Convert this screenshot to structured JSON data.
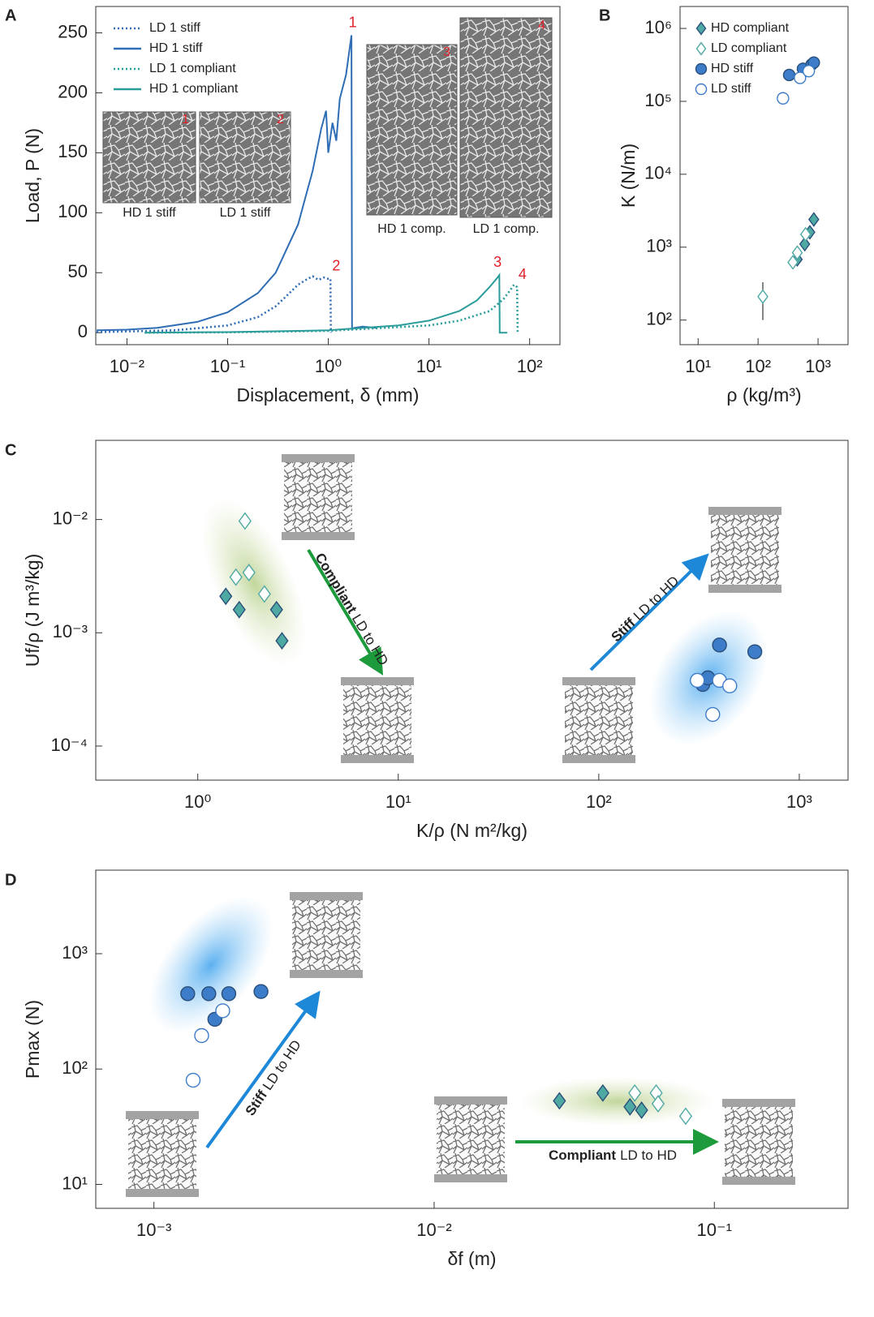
{
  "chart_data": [
    {
      "label": "A",
      "type": "line",
      "xlabel": "Displacement, δ (mm)",
      "ylabel": "Load, P (N)",
      "xscale": "log",
      "yscale": "linear",
      "xlim": [
        0.0049,
        200
      ],
      "ylim": [
        -10,
        272
      ],
      "xticks": [
        {
          "value": 0.01,
          "label": "10⁻²"
        },
        {
          "value": 0.1,
          "label": "10⁻¹"
        },
        {
          "value": 1,
          "label": "10⁰"
        },
        {
          "value": 10,
          "label": "10¹"
        },
        {
          "value": 100,
          "label": "10²"
        }
      ],
      "yticks": [
        0,
        50,
        100,
        150,
        200,
        250
      ],
      "legend": "upper left",
      "series": [
        {
          "name": "LD 1 stiff",
          "color": "#2f6db5",
          "dash": "dotted",
          "x": [
            0.005,
            0.01,
            0.03,
            0.1,
            0.2,
            0.3,
            0.4,
            0.5,
            0.6,
            0.7,
            0.8,
            0.9,
            1.0,
            1.05,
            1.06
          ],
          "values": [
            0.5,
            1,
            2,
            6,
            13,
            22,
            32,
            40,
            44,
            47,
            44,
            46,
            45,
            45,
            0
          ]
        },
        {
          "name": "HD 1 stiff",
          "color": "#2f6db5",
          "dash": "solid",
          "x": [
            0.005,
            0.01,
            0.02,
            0.05,
            0.1,
            0.2,
            0.3,
            0.5,
            0.7,
            0.85,
            0.95,
            1.0,
            1.1,
            1.2,
            1.3,
            1.5,
            1.7,
            1.72,
            1.8,
            2.2,
            3.0
          ],
          "values": [
            2,
            2.5,
            4,
            9,
            17,
            33,
            50,
            90,
            135,
            170,
            185,
            150,
            175,
            160,
            195,
            215,
            248,
            3,
            4,
            5,
            4
          ]
        },
        {
          "name": "LD 1 compliant",
          "color": "#2a9c9a",
          "dash": "dotted",
          "x": [
            0.015,
            0.1,
            1,
            10,
            20,
            40,
            55,
            65,
            70,
            75,
            76
          ],
          "values": [
            0,
            0.3,
            1.5,
            6,
            10,
            18,
            28,
            36,
            40,
            38,
            0
          ]
        },
        {
          "name": "HD 1 compliant",
          "color": "#2a9c9a",
          "dash": "solid",
          "x": [
            0.015,
            0.1,
            1,
            5,
            10,
            20,
            30,
            40,
            48,
            50,
            50.5,
            60
          ],
          "values": [
            0,
            0.5,
            2,
            6,
            10,
            18,
            27,
            38,
            46,
            48,
            0,
            0
          ]
        }
      ],
      "annotation_color": "#e0202a",
      "annotations": [
        {
          "text": "1",
          "x": 1.75,
          "y": 258
        },
        {
          "text": "2",
          "x": 1.2,
          "y": 55
        },
        {
          "text": "3",
          "x": 48,
          "y": 58
        },
        {
          "text": "4",
          "x": 85,
          "y": 48
        }
      ],
      "insets": [
        {
          "caption": "HD 1 stiff",
          "number": "1"
        },
        {
          "caption": "LD 1 stiff",
          "number": "2"
        },
        {
          "caption": "HD 1 comp.",
          "number": "3"
        },
        {
          "caption": "LD 1 comp.",
          "number": "4"
        }
      ]
    },
    {
      "label": "B",
      "type": "scatter",
      "xlabel": "ρ (kg/m³)",
      "ylabel": "K (N/m)",
      "xscale": "log",
      "yscale": "log",
      "xlim": [
        5,
        3160
      ],
      "ylim": [
        46,
        2000000
      ],
      "xticks": [
        {
          "value": 10,
          "label": "10¹"
        },
        {
          "value": 100,
          "label": "10²"
        },
        {
          "value": 1000,
          "label": "10³"
        }
      ],
      "yticks": [
        {
          "value": 100,
          "label": "10²"
        },
        {
          "value": 1000,
          "label": "10³"
        },
        {
          "value": 10000,
          "label": "10⁴"
        },
        {
          "value": 100000,
          "label": "10⁵"
        },
        {
          "value": 1000000,
          "label": "10⁶"
        }
      ],
      "legend": "upper left",
      "series": [
        {
          "name": "HD compliant",
          "color": "#4fa9a3",
          "marker": "diamond",
          "filled": true,
          "x": [
            450,
            600,
            730,
            850
          ],
          "values": [
            680,
            1100,
            1600,
            2400
          ]
        },
        {
          "name": "LD compliant",
          "color": "#4fa9a3",
          "marker": "diamond",
          "filled": false,
          "x": [
            120,
            380,
            450,
            620
          ],
          "values": [
            210,
            620,
            840,
            1500
          ],
          "y_low": [
            100,
            null,
            null,
            null
          ],
          "y_high": [
            330,
            null,
            null,
            null
          ]
        },
        {
          "name": "HD stiff",
          "color": "#3d7cc9",
          "marker": "circle",
          "filled": true,
          "x": [
            330,
            560,
            780,
            850
          ],
          "values": [
            230000,
            280000,
            320000,
            340000
          ]
        },
        {
          "name": "LD stiff",
          "color": "#3d7cc9",
          "marker": "circle",
          "filled": false,
          "x": [
            260,
            500,
            700
          ],
          "values": [
            110000,
            210000,
            260000
          ]
        }
      ]
    },
    {
      "label": "C",
      "type": "scatter",
      "xlabel": "K/ρ (N m²/kg)",
      "ylabel": "Uf/ρ (J m³/kg)",
      "xscale": "log",
      "yscale": "log",
      "xlim": [
        0.31,
        1750
      ],
      "ylim": [
        5e-05,
        0.05
      ],
      "xticks": [
        {
          "value": 1,
          "label": "10⁰"
        },
        {
          "value": 10,
          "label": "10¹"
        },
        {
          "value": 100,
          "label": "10²"
        },
        {
          "value": 1000,
          "label": "10³"
        }
      ],
      "yticks": [
        {
          "value": 0.0001,
          "label": "10⁻⁴"
        },
        {
          "value": 0.001,
          "label": "10⁻³"
        },
        {
          "value": 0.01,
          "label": "10⁻²"
        }
      ],
      "series": [
        {
          "color": "#4fa9a3",
          "marker": "diamond",
          "filled": false,
          "x": [
            1.72,
            1.55,
            1.8,
            2.15
          ],
          "values": [
            0.0097,
            0.0031,
            0.0034,
            0.0022
          ]
        },
        {
          "color": "#4fa9a3",
          "marker": "diamond",
          "filled": true,
          "x": [
            1.38,
            1.61,
            2.47,
            2.63
          ],
          "values": [
            0.0021,
            0.0016,
            0.0016,
            0.00085
          ]
        },
        {
          "color": "#3d7cc9",
          "marker": "circle",
          "filled": true,
          "x": [
            400,
            600,
            330,
            350
          ],
          "values": [
            0.00078,
            0.00068,
            0.00035,
            0.0004
          ]
        },
        {
          "color": "#3d7cc9",
          "marker": "circle",
          "filled": false,
          "x": [
            370,
            310,
            400,
            450
          ],
          "values": [
            0.00019,
            0.00038,
            0.00038,
            0.00034
          ]
        }
      ],
      "annotations": [
        {
          "bold": "Compliant",
          "text": "LD to HD"
        },
        {
          "bold": "Stiff",
          "text": "LD to HD"
        }
      ]
    },
    {
      "label": "D",
      "type": "scatter",
      "xlabel": "δf (m)",
      "ylabel": "Pmax (N)",
      "xscale": "log",
      "yscale": "log",
      "xlim": [
        0.00062,
        0.3
      ],
      "ylim": [
        6.2,
        5300
      ],
      "xticks": [
        {
          "value": 0.001,
          "label": "10⁻³"
        },
        {
          "value": 0.01,
          "label": "10⁻²"
        },
        {
          "value": 0.1,
          "label": "10⁻¹"
        }
      ],
      "yticks": [
        {
          "value": 10,
          "label": "10¹"
        },
        {
          "value": 100,
          "label": "10²"
        },
        {
          "value": 1000,
          "label": "10³"
        }
      ],
      "series": [
        {
          "color": "#3d7cc9",
          "marker": "circle",
          "filled": true,
          "x": [
            0.00132,
            0.00157,
            0.00185,
            0.00241,
            0.00165
          ],
          "values": [
            450,
            450,
            450,
            470,
            270
          ]
        },
        {
          "color": "#3d7cc9",
          "marker": "circle",
          "filled": false,
          "x": [
            0.00176,
            0.00148,
            0.00138
          ],
          "values": [
            320,
            195,
            80
          ]
        },
        {
          "color": "#4fa9a3",
          "marker": "diamond",
          "filled": true,
          "x": [
            0.028,
            0.04,
            0.05,
            0.055
          ],
          "values": [
            53,
            62,
            47,
            44
          ]
        },
        {
          "color": "#4fa9a3",
          "marker": "diamond",
          "filled": false,
          "x": [
            0.052,
            0.062,
            0.063,
            0.079
          ],
          "values": [
            62,
            62,
            50,
            39
          ]
        }
      ],
      "annotations": [
        {
          "bold": "Stiff",
          "text": "LD to HD"
        },
        {
          "bold": "Compliant",
          "text": "LD to HD"
        }
      ]
    }
  ]
}
